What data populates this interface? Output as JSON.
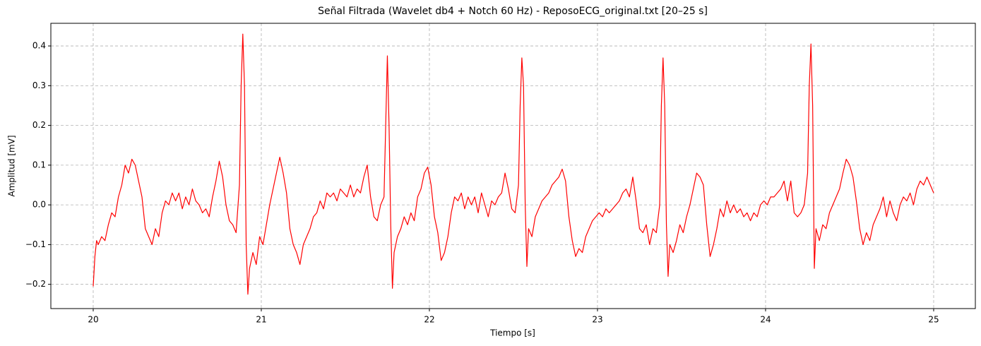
{
  "chart_data": {
    "type": "line",
    "title": "Señal Filtrada (Wavelet db4 + Notch 60 Hz) - ReposoECG_original.txt [20–25 s]",
    "xlabel": "Tiempo [s]",
    "ylabel": "Amplitud [mV]",
    "color": "#ff0000",
    "grid": true,
    "xlim": [
      19.748,
      25.248
    ],
    "ylim": [
      -0.261,
      0.457
    ],
    "xticks": [
      20,
      21,
      22,
      23,
      24,
      25
    ],
    "yticks": [
      {
        "value": -0.2,
        "label": "−0.2"
      },
      {
        "value": -0.1,
        "label": "−0.1"
      },
      {
        "value": 0,
        "label": "0.0"
      },
      0.1,
      0.2,
      0.3,
      0.4
    ],
    "x": [
      20.0,
      20.01,
      20.02,
      20.03,
      20.05,
      20.07,
      20.09,
      20.11,
      20.13,
      20.15,
      20.17,
      20.19,
      20.21,
      20.23,
      20.25,
      20.27,
      20.29,
      20.31,
      20.33,
      20.35,
      20.37,
      20.39,
      20.41,
      20.43,
      20.45,
      20.47,
      20.49,
      20.51,
      20.53,
      20.55,
      20.57,
      20.59,
      20.61,
      20.63,
      20.65,
      20.67,
      20.69,
      20.71,
      20.73,
      20.75,
      20.77,
      20.79,
      20.81,
      20.83,
      20.85,
      20.87,
      20.88,
      20.89,
      20.9,
      20.91,
      20.92,
      20.93,
      20.95,
      20.97,
      20.99,
      21.01,
      21.03,
      21.05,
      21.07,
      21.09,
      21.11,
      21.13,
      21.15,
      21.17,
      21.19,
      21.21,
      21.23,
      21.25,
      21.27,
      21.29,
      21.31,
      21.33,
      21.35,
      21.37,
      21.39,
      21.41,
      21.43,
      21.45,
      21.47,
      21.49,
      21.51,
      21.53,
      21.55,
      21.57,
      21.59,
      21.61,
      21.63,
      21.65,
      21.67,
      21.69,
      21.71,
      21.73,
      21.74,
      21.75,
      21.76,
      21.77,
      21.78,
      21.79,
      21.81,
      21.83,
      21.85,
      21.87,
      21.89,
      21.91,
      21.93,
      21.95,
      21.97,
      21.99,
      22.01,
      22.03,
      22.05,
      22.07,
      22.09,
      22.11,
      22.13,
      22.15,
      22.17,
      22.19,
      22.21,
      22.23,
      22.25,
      22.27,
      22.29,
      22.31,
      22.33,
      22.35,
      22.37,
      22.39,
      22.41,
      22.43,
      22.45,
      22.47,
      22.49,
      22.51,
      22.53,
      22.54,
      22.55,
      22.56,
      22.57,
      22.58,
      22.59,
      22.61,
      22.63,
      22.65,
      22.67,
      22.69,
      22.71,
      22.73,
      22.75,
      22.77,
      22.79,
      22.81,
      22.83,
      22.85,
      22.87,
      22.89,
      22.91,
      22.93,
      22.95,
      22.97,
      22.99,
      23.01,
      23.03,
      23.05,
      23.07,
      23.09,
      23.11,
      23.13,
      23.15,
      23.17,
      23.19,
      23.21,
      23.23,
      23.25,
      23.27,
      23.29,
      23.31,
      23.33,
      23.35,
      23.37,
      23.38,
      23.39,
      23.4,
      23.41,
      23.42,
      23.43,
      23.45,
      23.47,
      23.49,
      23.51,
      23.53,
      23.55,
      23.57,
      23.59,
      23.61,
      23.63,
      23.65,
      23.67,
      23.69,
      23.71,
      23.73,
      23.75,
      23.77,
      23.79,
      23.81,
      23.83,
      23.85,
      23.87,
      23.89,
      23.91,
      23.93,
      23.95,
      23.97,
      23.99,
      24.01,
      24.03,
      24.05,
      24.07,
      24.09,
      24.11,
      24.13,
      24.15,
      24.17,
      24.19,
      24.21,
      24.23,
      24.25,
      24.26,
      24.27,
      24.28,
      24.29,
      24.3,
      24.32,
      24.34,
      24.36,
      24.38,
      24.4,
      24.42,
      24.44,
      24.46,
      24.48,
      24.5,
      24.52,
      24.54,
      24.56,
      24.58,
      24.6,
      24.62,
      24.64,
      24.66,
      24.68,
      24.7,
      24.72,
      24.74,
      24.76,
      24.78,
      24.8,
      24.82,
      24.84,
      24.86,
      24.88,
      24.9,
      24.92,
      24.94,
      24.96,
      24.98,
      25.0
    ],
    "values": [
      -0.205,
      -0.13,
      -0.09,
      -0.1,
      -0.08,
      -0.09,
      -0.05,
      -0.02,
      -0.03,
      0.02,
      0.05,
      0.1,
      0.08,
      0.115,
      0.1,
      0.06,
      0.02,
      -0.06,
      -0.08,
      -0.1,
      -0.06,
      -0.08,
      -0.02,
      0.01,
      0.0,
      0.03,
      0.01,
      0.03,
      -0.01,
      0.02,
      0.0,
      0.04,
      0.01,
      0.0,
      -0.02,
      -0.01,
      -0.03,
      0.02,
      0.06,
      0.11,
      0.07,
      0.0,
      -0.04,
      -0.05,
      -0.07,
      0.05,
      0.3,
      0.43,
      0.3,
      -0.1,
      -0.225,
      -0.16,
      -0.12,
      -0.15,
      -0.08,
      -0.1,
      -0.05,
      0.0,
      0.04,
      0.08,
      0.12,
      0.08,
      0.03,
      -0.06,
      -0.1,
      -0.12,
      -0.15,
      -0.1,
      -0.08,
      -0.06,
      -0.03,
      -0.02,
      0.01,
      -0.01,
      0.03,
      0.02,
      0.03,
      0.01,
      0.04,
      0.03,
      0.02,
      0.05,
      0.02,
      0.04,
      0.03,
      0.07,
      0.1,
      0.02,
      -0.03,
      -0.04,
      0.0,
      0.02,
      0.2,
      0.375,
      0.2,
      -0.05,
      -0.21,
      -0.12,
      -0.08,
      -0.06,
      -0.03,
      -0.05,
      -0.02,
      -0.04,
      0.02,
      0.04,
      0.08,
      0.095,
      0.05,
      -0.03,
      -0.07,
      -0.14,
      -0.12,
      -0.08,
      -0.02,
      0.02,
      0.01,
      0.03,
      -0.01,
      0.02,
      0.0,
      0.02,
      -0.02,
      0.03,
      0.0,
      -0.03,
      0.01,
      0.0,
      0.02,
      0.03,
      0.08,
      0.04,
      -0.01,
      -0.02,
      0.05,
      0.25,
      0.37,
      0.3,
      0.0,
      -0.155,
      -0.06,
      -0.08,
      -0.03,
      -0.01,
      0.01,
      0.02,
      0.03,
      0.05,
      0.06,
      0.07,
      0.09,
      0.06,
      -0.03,
      -0.09,
      -0.13,
      -0.11,
      -0.12,
      -0.08,
      -0.06,
      -0.04,
      -0.03,
      -0.02,
      -0.03,
      -0.01,
      -0.02,
      -0.01,
      0.0,
      0.01,
      0.03,
      0.04,
      0.02,
      0.07,
      0.01,
      -0.06,
      -0.07,
      -0.05,
      -0.1,
      -0.06,
      -0.07,
      0.0,
      0.25,
      0.37,
      0.25,
      -0.05,
      -0.18,
      -0.1,
      -0.12,
      -0.09,
      -0.05,
      -0.07,
      -0.03,
      0.0,
      0.04,
      0.08,
      0.07,
      0.05,
      -0.05,
      -0.13,
      -0.1,
      -0.06,
      -0.01,
      -0.03,
      0.01,
      -0.02,
      0.0,
      -0.02,
      -0.01,
      -0.03,
      -0.02,
      -0.04,
      -0.02,
      -0.03,
      0.0,
      0.01,
      0.0,
      0.02,
      0.02,
      0.03,
      0.04,
      0.06,
      0.01,
      0.06,
      -0.02,
      -0.03,
      -0.02,
      0.0,
      0.08,
      0.3,
      0.405,
      0.25,
      -0.16,
      -0.06,
      -0.09,
      -0.05,
      -0.06,
      -0.02,
      0.0,
      0.02,
      0.04,
      0.08,
      0.115,
      0.1,
      0.07,
      0.01,
      -0.06,
      -0.1,
      -0.07,
      -0.09,
      -0.05,
      -0.03,
      -0.01,
      0.02,
      -0.03,
      0.01,
      -0.02,
      -0.04,
      0.0,
      0.02,
      0.01,
      0.03,
      0.0,
      0.04,
      0.06,
      0.05,
      0.07,
      0.05,
      0.03
    ]
  }
}
